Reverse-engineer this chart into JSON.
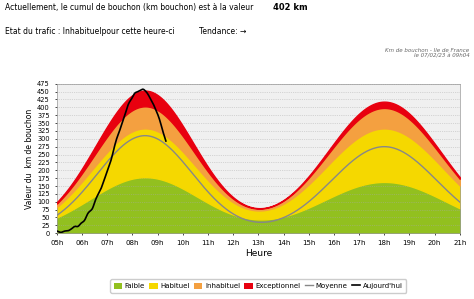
{
  "title_line1": "Actuellement, le cumul de bouchon (km bouchon) est à la valeur ",
  "title_value": "402 km",
  "title_line2": "Etat du trafic : Inhabituelpour cette heure-ci",
  "title_tendance": "Tendance: →",
  "watermark_line1": "Km de bouchon - Ile de France",
  "watermark_line2": "le 07/02/23 à 09h04",
  "xlabel": "Heure",
  "ylabel": "Valeur du  km de bouchon",
  "ylim": [
    0,
    475
  ],
  "yticks": [
    0,
    25,
    50,
    75,
    100,
    125,
    150,
    175,
    200,
    225,
    250,
    275,
    300,
    325,
    350,
    375,
    400,
    425,
    450,
    475
  ],
  "xtick_labels": [
    "05h",
    "06h",
    "07h",
    "08h",
    "09h",
    "10h",
    "11h",
    "12h",
    "13h",
    "14h",
    "15h",
    "16h",
    "17h",
    "18h",
    "19h",
    "20h",
    "21h"
  ],
  "color_faible": "#92c01f",
  "color_habituel": "#f5d800",
  "color_inhabituel": "#f4a040",
  "color_exceptionnel": "#e8000f",
  "color_moyenne": "#888888",
  "color_aujourdhui": "#000000",
  "bg_color": "#ffffff",
  "plot_bg_color": "#f0f0f0"
}
